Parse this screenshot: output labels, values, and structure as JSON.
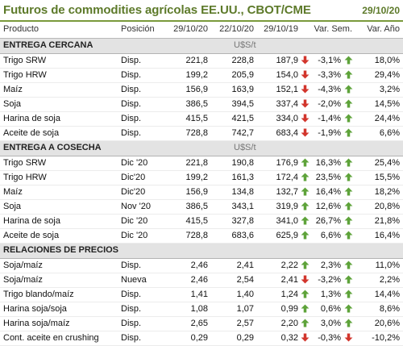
{
  "header": {
    "title": "Futuros de commodities agrícolas EE.UU., CBOT/CME",
    "date": "29/10/20"
  },
  "columns": [
    "Producto",
    "Posición",
    "29/10/20",
    "22/10/20",
    "29/10/19",
    "Var. Sem.",
    "Var. Año"
  ],
  "colors": {
    "up": "#5ea33a",
    "down": "#d2352c",
    "title": "#5d7a2a",
    "section_bg": "#e3e3e3"
  },
  "sections": [
    {
      "title": "ENTREGA CERCANA",
      "unit": "U$S/t",
      "rows": [
        {
          "product": "Trigo SRW",
          "position": "Disp.",
          "v1": "221,8",
          "v2": "228,8",
          "v3": "187,9",
          "a1": "down",
          "var_sem": "-3,1%",
          "a2": "up",
          "var_year": "18,0%"
        },
        {
          "product": "Trigo HRW",
          "position": "Disp.",
          "v1": "199,2",
          "v2": "205,9",
          "v3": "154,0",
          "a1": "down",
          "var_sem": "-3,3%",
          "a2": "up",
          "var_year": "29,4%"
        },
        {
          "product": "Maíz",
          "position": "Disp.",
          "v1": "156,9",
          "v2": "163,9",
          "v3": "152,1",
          "a1": "down",
          "var_sem": "-4,3%",
          "a2": "up",
          "var_year": "3,2%"
        },
        {
          "product": "Soja",
          "position": "Disp.",
          "v1": "386,5",
          "v2": "394,5",
          "v3": "337,4",
          "a1": "down",
          "var_sem": "-2,0%",
          "a2": "up",
          "var_year": "14,5%"
        },
        {
          "product": "Harina de soja",
          "position": "Disp.",
          "v1": "415,5",
          "v2": "421,5",
          "v3": "334,0",
          "a1": "down",
          "var_sem": "-1,4%",
          "a2": "up",
          "var_year": "24,4%"
        },
        {
          "product": "Aceite de soja",
          "position": "Disp.",
          "v1": "728,8",
          "v2": "742,7",
          "v3": "683,4",
          "a1": "down",
          "var_sem": "-1,9%",
          "a2": "up",
          "var_year": "6,6%"
        }
      ]
    },
    {
      "title": "ENTREGA A COSECHA",
      "unit": "U$S/t",
      "rows": [
        {
          "product": "Trigo SRW",
          "position": "Dic '20",
          "v1": "221,8",
          "v2": "190,8",
          "v3": "176,9",
          "a1": "up",
          "var_sem": "16,3%",
          "a2": "up",
          "var_year": "25,4%"
        },
        {
          "product": "Trigo HRW",
          "position": "Dic'20",
          "v1": "199,2",
          "v2": "161,3",
          "v3": "172,4",
          "a1": "up",
          "var_sem": "23,5%",
          "a2": "up",
          "var_year": "15,5%"
        },
        {
          "product": "Maíz",
          "position": "Dic'20",
          "v1": "156,9",
          "v2": "134,8",
          "v3": "132,7",
          "a1": "up",
          "var_sem": "16,4%",
          "a2": "up",
          "var_year": "18,2%"
        },
        {
          "product": "Soja",
          "position": "Nov '20",
          "v1": "386,5",
          "v2": "343,1",
          "v3": "319,9",
          "a1": "up",
          "var_sem": "12,6%",
          "a2": "up",
          "var_year": "20,8%"
        },
        {
          "product": "Harina de soja",
          "position": "Dic '20",
          "v1": "415,5",
          "v2": "327,8",
          "v3": "341,0",
          "a1": "up",
          "var_sem": "26,7%",
          "a2": "up",
          "var_year": "21,8%"
        },
        {
          "product": "Aceite de soja",
          "position": "Dic '20",
          "v1": "728,8",
          "v2": "683,6",
          "v3": "625,9",
          "a1": "up",
          "var_sem": "6,6%",
          "a2": "up",
          "var_year": "16,4%"
        }
      ]
    },
    {
      "title": "RELACIONES DE PRECIOS",
      "unit": "",
      "rows": [
        {
          "product": "Soja/maíz",
          "position": "Disp.",
          "v1": "2,46",
          "v2": "2,41",
          "v3": "2,22",
          "a1": "up",
          "var_sem": "2,3%",
          "a2": "up",
          "var_year": "11,0%"
        },
        {
          "product": "Soja/maíz",
          "position": "Nueva",
          "v1": "2,46",
          "v2": "2,54",
          "v3": "2,41",
          "a1": "down",
          "var_sem": "-3,2%",
          "a2": "up",
          "var_year": "2,2%"
        },
        {
          "product": "Trigo blando/maíz",
          "position": "Disp.",
          "v1": "1,41",
          "v2": "1,40",
          "v3": "1,24",
          "a1": "up",
          "var_sem": "1,3%",
          "a2": "up",
          "var_year": "14,4%"
        },
        {
          "product": "Harina soja/soja",
          "position": "Disp.",
          "v1": "1,08",
          "v2": "1,07",
          "v3": "0,99",
          "a1": "up",
          "var_sem": "0,6%",
          "a2": "up",
          "var_year": "8,6%"
        },
        {
          "product": "Harina soja/maíz",
          "position": "Disp.",
          "v1": "2,65",
          "v2": "2,57",
          "v3": "2,20",
          "a1": "up",
          "var_sem": "3,0%",
          "a2": "up",
          "var_year": "20,6%"
        },
        {
          "product": "Cont. aceite en crushing",
          "position": "Disp.",
          "v1": "0,29",
          "v2": "0,29",
          "v3": "0,32",
          "a1": "down",
          "var_sem": "-0,3%",
          "a2": "down",
          "var_year": "-10,2%"
        }
      ]
    }
  ]
}
